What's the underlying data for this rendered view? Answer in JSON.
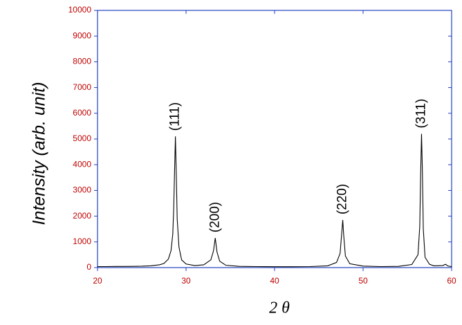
{
  "chart_data": {
    "type": "line",
    "xlabel": "2 θ",
    "ylabel": "Intensity (arb. unit)",
    "x": [
      20,
      21,
      22,
      23,
      24,
      25,
      26,
      27,
      27.5,
      28,
      28.3,
      28.5,
      28.6,
      28.7,
      28.8,
      28.9,
      29.0,
      29.2,
      29.5,
      30,
      31,
      32,
      32.8,
      33.1,
      33.3,
      33.5,
      33.8,
      34.5,
      36,
      38,
      40,
      42,
      44,
      46,
      47,
      47.4,
      47.6,
      47.7,
      47.8,
      48.0,
      48.5,
      50,
      52,
      54,
      55.5,
      56.2,
      56.4,
      56.5,
      56.6,
      56.7,
      56.8,
      57.0,
      57.5,
      58,
      59,
      59.3,
      59.6,
      60
    ],
    "series": [
      {
        "color": "#000000",
        "values": [
          40,
          40,
          45,
          45,
          50,
          55,
          70,
          110,
          160,
          330,
          650,
          1300,
          2200,
          3700,
          5100,
          3600,
          1900,
          800,
          300,
          140,
          80,
          110,
          300,
          650,
          1150,
          600,
          250,
          90,
          50,
          40,
          35,
          35,
          40,
          70,
          200,
          550,
          1400,
          1850,
          1300,
          450,
          150,
          60,
          40,
          50,
          120,
          500,
          1600,
          3600,
          5200,
          3700,
          1500,
          400,
          130,
          70,
          80,
          130,
          60,
          40
        ]
      }
    ],
    "annotations": [
      {
        "text": "(111)",
        "x": 28.8,
        "y": 5100
      },
      {
        "text": "(200)",
        "x": 33.3,
        "y": 1150
      },
      {
        "text": "(220)",
        "x": 47.7,
        "y": 1850
      },
      {
        "text": "(311)",
        "x": 56.6,
        "y": 5200
      }
    ],
    "xlim": [
      20,
      60
    ],
    "xticks": [
      20,
      30,
      40,
      50,
      60
    ],
    "ylim": [
      0,
      10000
    ],
    "yticks": [
      0,
      1000,
      2000,
      3000,
      4000,
      5000,
      6000,
      7000,
      8000,
      9000,
      10000
    ],
    "axis_color": "#1f3fbf",
    "tick_label_color": "#c00000"
  }
}
